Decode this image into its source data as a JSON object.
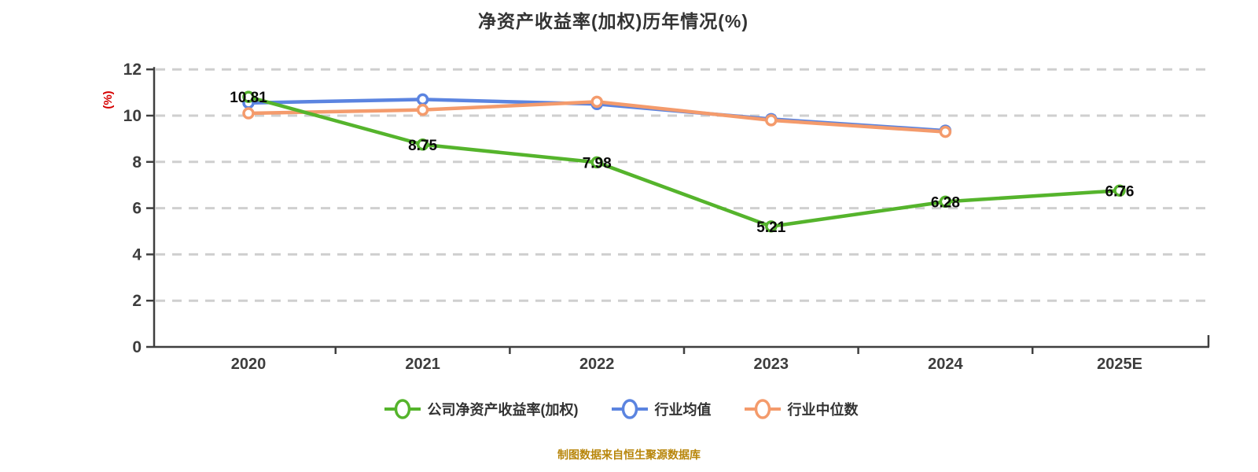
{
  "title": "净资产收益率(加权)历年情况(%)",
  "caption": "制图数据来自恒生聚源数据库",
  "colors": {
    "company_line": "#55B42C",
    "industry_mean_line": "#5B84E0",
    "industry_median_line": "#F49B6C",
    "grid": "#CFCFCF",
    "axis": "#3F3F3F",
    "tick_label": "#3D3D3D",
    "value_label": "#0A0A0A",
    "y_unit_label": "#D60000",
    "caption": "#B8860B",
    "marker_fill": "#FFFFFF"
  },
  "chart_data": {
    "type": "line",
    "title": "净资产收益率(加权)历年情况(%)",
    "categories": [
      "2020",
      "2021",
      "2022",
      "2023",
      "2024",
      "2025E"
    ],
    "series": [
      {
        "name": "公司净资产收益率(加权)",
        "color": "#55B42C",
        "values": [
          10.81,
          8.75,
          7.98,
          5.21,
          6.28,
          6.76
        ],
        "labeled": true
      },
      {
        "name": "行业均值",
        "color": "#5B84E0",
        "values": [
          10.55,
          10.7,
          10.5,
          9.85,
          9.35,
          null
        ],
        "labeled": false
      },
      {
        "name": "行业中位数",
        "color": "#F49B6C",
        "values": [
          10.1,
          10.25,
          10.6,
          9.8,
          9.3,
          null
        ],
        "labeled": false
      }
    ],
    "ylabel": "(%)",
    "xlabel": "",
    "ylim": [
      0,
      12
    ],
    "y_ticks": [
      0,
      2,
      4,
      6,
      8,
      10,
      12
    ],
    "grid": "horizontal-dashed",
    "legend_position": "bottom"
  }
}
